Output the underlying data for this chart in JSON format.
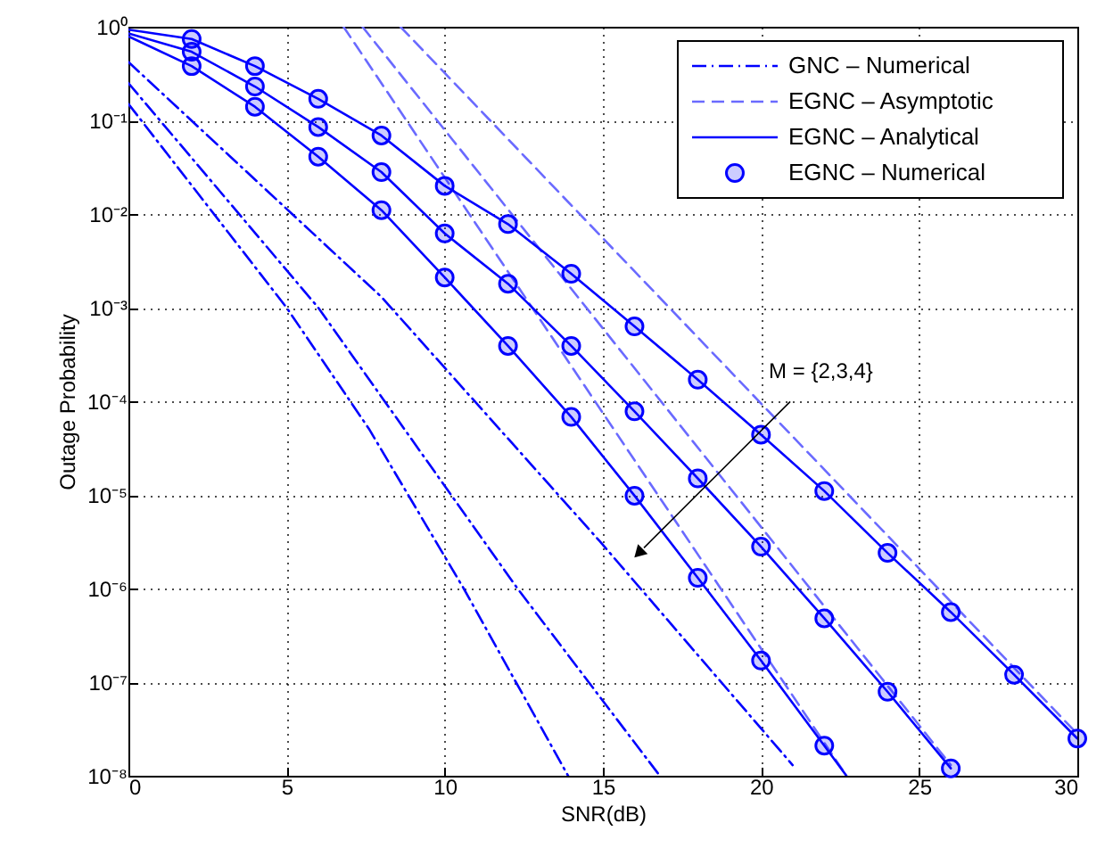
{
  "chart_data": {
    "type": "line",
    "xlabel": "SNR(dB)",
    "ylabel": "Outage Probability",
    "xlim": [
      0,
      30
    ],
    "xticks": [
      0,
      5,
      10,
      15,
      20,
      25,
      30
    ],
    "ylim": [
      1e-08,
      1
    ],
    "log": "y",
    "yticks": [
      {
        "value": 1e-08,
        "label": "10⁻⁸"
      },
      {
        "value": 1e-07,
        "label": "10⁻⁷"
      },
      {
        "value": 1e-06,
        "label": "10⁻⁶"
      },
      {
        "value": 1e-05,
        "label": "10⁻⁵"
      },
      {
        "value": 0.0001,
        "label": "10⁻⁴"
      },
      {
        "value": 0.001,
        "label": "10⁻³"
      },
      {
        "value": 0.01,
        "label": "10⁻²"
      },
      {
        "value": 0.1,
        "label": "10⁻¹"
      },
      {
        "value": 1,
        "label": "10⁰"
      }
    ],
    "grid": true,
    "legend": "top right",
    "annotations": [
      "M = {2,3,4}"
    ],
    "series": [
      {
        "name": "GNC – Numerical",
        "line_style": "dashdot",
        "color": "#0000ff",
        "x": [
          0,
          8,
          14.9,
          21
        ],
        "values": [
          0.42,
          0.0013,
          3.2e-06,
          1.3e-08
        ]
      },
      {
        "line_style": "dashdot",
        "color": "#0000ff",
        "x": [
          0,
          6,
          12.3,
          16.8
        ],
        "values": [
          0.25,
          0.001,
          1e-06,
          1e-08
        ]
      },
      {
        "line_style": "dashdot",
        "color": "#0000ff",
        "x": [
          0,
          5,
          7.6,
          10.6,
          13.9
        ],
        "values": [
          0.15,
          0.001,
          5.1e-05,
          1e-06,
          1e-08
        ]
      },
      {
        "name": "EGNC – Asymptotic",
        "line_style": "dashed",
        "color": "#6a6aff",
        "x": [
          8.6,
          30
        ],
        "values": [
          1,
          2.8e-08
        ]
      },
      {
        "line_style": "dashed",
        "color": "#6a6aff",
        "x": [
          7.4,
          26
        ],
        "values": [
          1,
          1.3e-08
        ]
      },
      {
        "line_style": "dashed",
        "color": "#6a6aff",
        "x": [
          6.8,
          22.7
        ],
        "values": [
          1,
          1e-08
        ]
      },
      {
        "name": "EGNC – Analytical",
        "line_style": "solid",
        "color": "#0000ff",
        "x": [
          0,
          2,
          4,
          6,
          8,
          10,
          12,
          14,
          16,
          18,
          20,
          22,
          24,
          26,
          28,
          30
        ],
        "values": [
          0.93,
          0.74,
          0.38,
          0.17,
          0.069,
          0.02,
          0.0078,
          0.0023,
          0.00063,
          0.00017,
          4.4e-05,
          1.1e-05,
          2.4e-06,
          5.6e-07,
          1.2e-07,
          2.5e-08
        ]
      },
      {
        "line_style": "solid",
        "color": "#0000ff",
        "x": [
          0,
          2,
          4,
          6,
          8,
          10,
          12,
          14,
          16,
          18,
          20,
          22,
          24,
          26
        ],
        "values": [
          0.85,
          0.54,
          0.23,
          0.085,
          0.028,
          0.0062,
          0.0018,
          0.00039,
          7.8e-05,
          1.5e-05,
          2.8e-06,
          4.8e-07,
          7.9e-08,
          1.2e-08
        ]
      },
      {
        "line_style": "solid",
        "color": "#0000ff",
        "x": [
          0,
          2,
          4,
          6,
          8,
          10,
          12,
          14,
          16,
          18,
          20,
          22,
          22.7
        ],
        "values": [
          0.79,
          0.38,
          0.14,
          0.041,
          0.011,
          0.0021,
          0.00039,
          6.8e-05,
          9.8e-06,
          1.3e-06,
          1.7e-07,
          2.1e-08,
          1e-08
        ]
      },
      {
        "name": "EGNC – Numerical",
        "type": "scatter",
        "marker": "circle",
        "color": "#0000ff",
        "x": [
          2,
          4,
          6,
          8,
          10,
          12,
          14,
          16,
          18,
          20,
          22,
          24,
          26,
          28,
          30
        ],
        "values": [
          0.74,
          0.38,
          0.17,
          0.069,
          0.02,
          0.0078,
          0.0023,
          0.00063,
          0.00017,
          4.4e-05,
          1.1e-05,
          2.4e-06,
          5.6e-07,
          1.2e-07,
          2.5e-08
        ]
      },
      {
        "type": "scatter",
        "marker": "circle",
        "color": "#0000ff",
        "x": [
          2,
          4,
          6,
          8,
          10,
          12,
          14,
          16,
          18,
          20,
          22,
          24,
          26
        ],
        "values": [
          0.54,
          0.23,
          0.085,
          0.028,
          0.0062,
          0.0018,
          0.00039,
          7.8e-05,
          1.5e-05,
          2.8e-06,
          4.8e-07,
          7.9e-08,
          1.2e-08
        ]
      },
      {
        "type": "scatter",
        "marker": "circle",
        "color": "#0000ff",
        "x": [
          2,
          4,
          6,
          8,
          10,
          12,
          14,
          16,
          18,
          20,
          22
        ],
        "values": [
          0.38,
          0.14,
          0.041,
          0.011,
          0.0021,
          0.00039,
          6.8e-05,
          9.8e-06,
          1.3e-06,
          1.7e-07,
          2.1e-08
        ]
      }
    ]
  }
}
